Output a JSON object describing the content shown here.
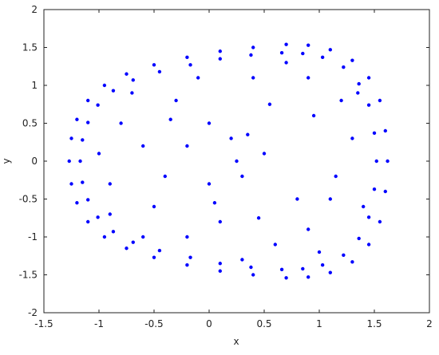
{
  "chart_data": {
    "type": "scatter",
    "xlabel": "x",
    "ylabel": "y",
    "color": "#0000ff",
    "x": [
      -1.27,
      -1.25,
      -1.2,
      -1.1,
      -0.95,
      -0.75,
      -0.5,
      -0.2,
      0.1,
      0.4,
      0.7,
      0.9,
      1.1,
      1.3,
      1.45,
      1.55,
      1.6,
      1.62,
      1.6,
      1.55,
      1.45,
      1.3,
      1.1,
      0.9,
      0.7,
      0.4,
      0.1,
      -0.2,
      -0.5,
      -0.75,
      -0.95,
      -1.1,
      -1.2,
      -1.25,
      -1.17,
      -1.15,
      -1.1,
      -1.01,
      -0.87,
      -0.69,
      -0.45,
      -0.17,
      0.1,
      0.38,
      0.66,
      0.85,
      1.03,
      1.22,
      1.36,
      1.45,
      1.5,
      1.52,
      1.5,
      1.45,
      1.36,
      1.22,
      1.03,
      0.85,
      0.66,
      0.38,
      0.1,
      -0.17,
      -0.45,
      -0.69,
      -0.87,
      -1.01,
      -1.1,
      -1.15,
      -0.8,
      -0.6,
      -0.9,
      -0.5,
      -0.3,
      0,
      0.2,
      0.35,
      0.3,
      0.5,
      0.1,
      -0.2,
      0.6,
      0.9,
      1.1,
      1.3,
      1.2,
      0.9,
      0.4,
      -0.1,
      -0.7,
      -1.0,
      -0.4,
      0,
      0.8,
      1.0,
      0.3,
      -0.6,
      -0.9,
      0.7,
      1.4,
      1.35,
      -0.2,
      0.25,
      0.05,
      -0.35,
      0.55,
      0.95,
      1.15,
      0.45
    ],
    "values": [
      0,
      0.3,
      0.55,
      0.8,
      1.0,
      1.15,
      1.27,
      1.37,
      1.45,
      1.5,
      1.54,
      1.53,
      1.47,
      1.33,
      1.1,
      0.8,
      0.4,
      0,
      -0.4,
      -0.8,
      -1.1,
      -1.33,
      -1.47,
      -1.53,
      -1.54,
      -1.5,
      -1.45,
      -1.37,
      -1.27,
      -1.15,
      -1.0,
      -0.8,
      -0.55,
      -0.3,
      0,
      0.28,
      0.51,
      0.74,
      0.93,
      1.07,
      1.18,
      1.27,
      1.35,
      1.4,
      1.43,
      1.42,
      1.37,
      1.24,
      1.02,
      0.74,
      0.37,
      0,
      -0.37,
      -0.74,
      -1.02,
      -1.24,
      -1.37,
      -1.42,
      -1.43,
      -1.4,
      -1.35,
      -1.27,
      -1.18,
      -1.07,
      -0.93,
      -0.74,
      -0.51,
      -0.28,
      0.5,
      0.2,
      -0.3,
      -0.6,
      0.8,
      0.5,
      0.3,
      0.35,
      -0.2,
      0.1,
      -0.8,
      -1.0,
      -1.1,
      -0.9,
      -0.5,
      0.3,
      0.8,
      1.1,
      1.1,
      1.1,
      0.9,
      0.1,
      -0.2,
      -0.3,
      -0.5,
      -1.2,
      -1.3,
      -1.0,
      -0.7,
      1.3,
      -0.6,
      0.9,
      0.2,
      0,
      -0.55,
      0.55,
      0.75,
      0.6,
      -0.2,
      -0.75
    ],
    "xlim": [
      -1.5,
      2
    ],
    "ylim": [
      -2,
      2
    ],
    "xticks": [
      -1.5,
      -1,
      -0.5,
      0,
      0.5,
      1,
      1.5,
      2
    ],
    "yticks": [
      -2,
      -1.5,
      -1,
      -0.5,
      0,
      0.5,
      1,
      1.5,
      2
    ]
  }
}
